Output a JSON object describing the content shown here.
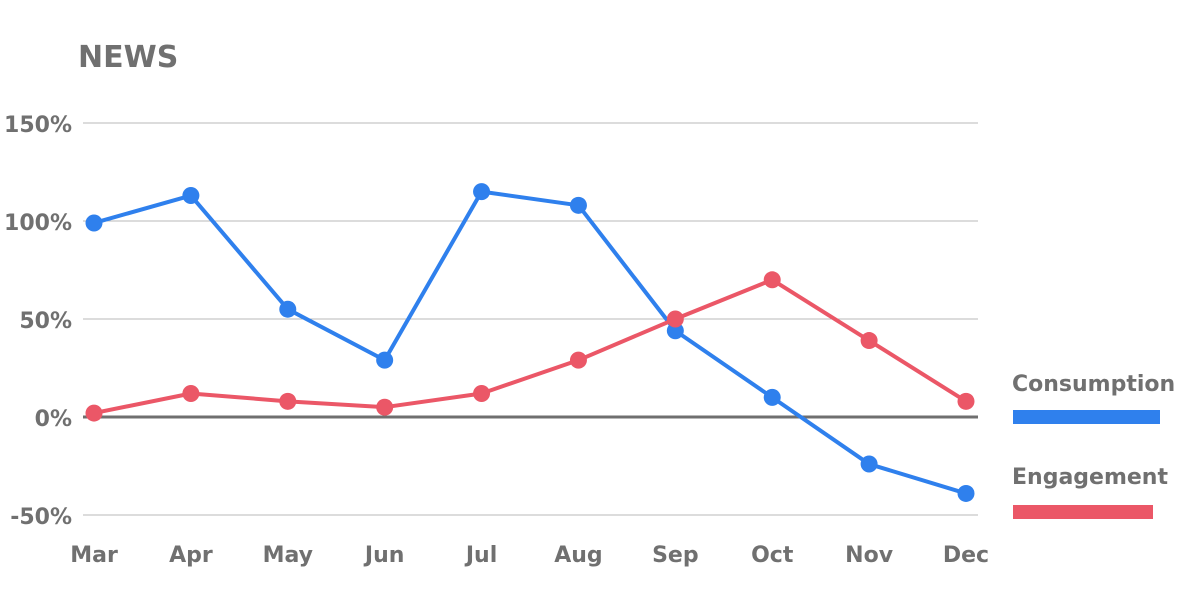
{
  "chart_data": {
    "type": "line",
    "title": "NEWS",
    "categories": [
      "Mar",
      "Apr",
      "May",
      "Jun",
      "Jul",
      "Aug",
      "Sep",
      "Oct",
      "Nov",
      "Dec"
    ],
    "y_ticks": [
      "150%",
      "100%",
      "50%",
      "0%",
      "-50%"
    ],
    "y_tick_values": [
      150,
      100,
      50,
      0,
      -50
    ],
    "ylim": [
      -50,
      150
    ],
    "grid": true,
    "legend_position": "right",
    "series": [
      {
        "name": "Consumption",
        "color": "#2f80ed",
        "values": [
          99,
          113,
          55,
          29,
          115,
          108,
          44,
          10,
          -24,
          -39
        ]
      },
      {
        "name": "Engagement",
        "color": "#eb5767",
        "values": [
          2,
          12,
          8,
          5,
          12,
          29,
          50,
          70,
          39,
          8
        ]
      }
    ]
  }
}
